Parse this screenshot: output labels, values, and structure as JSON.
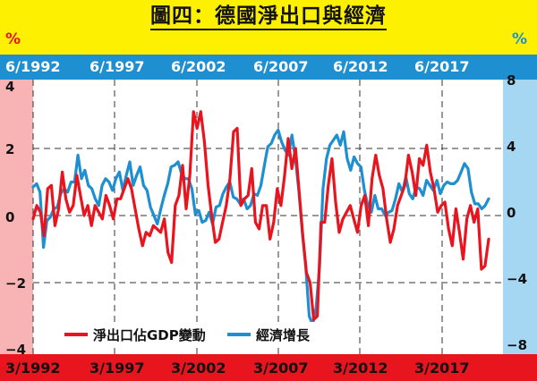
{
  "title": "圖四：德國淨出口與經濟",
  "left_unit": "%",
  "right_unit": "%",
  "colors": {
    "net_exports": "#e8141e",
    "growth": "#1e8fd0",
    "left_band": "#f8b4b4",
    "right_band": "#a6d7f2",
    "background": "#fdf000"
  },
  "chart_data": {
    "type": "line",
    "x_axis_top": {
      "ticks": [
        "6/1992",
        "6/1997",
        "6/2002",
        "6/2007",
        "6/2012",
        "6/2017"
      ]
    },
    "x_axis_bottom": {
      "ticks": [
        "3/1992",
        "3/1997",
        "3/2002",
        "3/2007",
        "3/2012",
        "3/2017"
      ]
    },
    "y_left": {
      "ylim": [
        -4,
        4
      ],
      "ticks": [
        "4",
        "2",
        "0",
        "−2",
        "−4"
      ]
    },
    "y_right": {
      "ylim": [
        -8,
        8
      ],
      "ticks": [
        "8",
        "4",
        "0",
        "−4",
        "−8"
      ]
    },
    "grid": true,
    "legend_position": "bottom-left",
    "series": [
      {
        "name": "淨出口佔GDP變動",
        "axis": "left",
        "start": "1992-03",
        "frequency": "quarterly",
        "values": [
          -0.1,
          0.3,
          0.1,
          -0.6,
          0.8,
          0.9,
          -0.3,
          0.2,
          1.3,
          0.5,
          0.1,
          0.3,
          1.2,
          0.6,
          0.0,
          0.3,
          -0.3,
          0.3,
          0.1,
          -0.1,
          0.6,
          0.3,
          -0.1,
          0.5,
          0.5,
          0.8,
          1.1,
          0.8,
          0.2,
          -0.4,
          -0.9,
          -0.5,
          -0.6,
          -0.3,
          -0.4,
          -0.5,
          -0.1,
          -1.1,
          -1.4,
          0.3,
          0.6,
          1.5,
          0.2,
          1.2,
          3.1,
          2.6,
          3.1,
          2.2,
          0.9,
          0.0,
          -0.8,
          -0.7,
          -0.2,
          0.3,
          1.1,
          2.5,
          2.6,
          0.3,
          0.5,
          0.6,
          1.4,
          -0.2,
          -0.4,
          0.3,
          0.3,
          -0.7,
          -0.2,
          0.8,
          0.3,
          1.2,
          2.3,
          1.4,
          2.0,
          0.7,
          -0.6,
          -1.7,
          -2.0,
          -3.1,
          -3.0,
          -0.2,
          -0.2,
          0.9,
          1.7,
          0.4,
          -0.5,
          -0.1,
          0.1,
          0.3,
          -0.1,
          -0.5,
          0.3,
          0.6,
          -0.3,
          1.1,
          1.8,
          1.2,
          0.8,
          -0.1,
          -0.8,
          -0.4,
          0.3,
          0.6,
          0.9,
          1.8,
          1.3,
          0.6,
          1.7,
          1.5,
          2.1,
          1.3,
          0.8,
          0.1,
          0.3,
          0.4,
          -0.4,
          -0.9,
          0.2,
          -0.5,
          -1.3,
          -0.1,
          0.3,
          -0.2,
          0.2,
          -1.6,
          -1.5,
          -0.7
        ]
      },
      {
        "name": "經濟增長",
        "axis": "right",
        "start": "1992-03",
        "frequency": "quarterly",
        "values": [
          1.7,
          1.9,
          1.4,
          -1.9,
          -0.3,
          -0.1,
          0.4,
          0.5,
          1.3,
          1.6,
          1.4,
          2.0,
          2.0,
          3.6,
          2.2,
          2.7,
          1.8,
          1.6,
          1.0,
          0.6,
          1.8,
          2.2,
          2.0,
          1.5,
          2.2,
          2.6,
          1.5,
          2.4,
          3.2,
          1.8,
          2.4,
          2.9,
          1.8,
          1.5,
          0.5,
          0.0,
          -0.5,
          0.4,
          1.2,
          1.9,
          2.9,
          3.0,
          3.2,
          2.5,
          2.2,
          2.2,
          1.6,
          0.1,
          0.3,
          -0.4,
          -0.3,
          0.2,
          -0.5,
          0.5,
          0.6,
          1.3,
          1.7,
          2.0,
          1.1,
          1.0,
          0.7,
          1.0,
          0.4,
          0.6,
          1.3,
          1.2,
          1.8,
          3.0,
          4.1,
          4.3,
          4.8,
          5.1,
          4.4,
          3.9,
          3.6,
          4.8,
          3.4,
          1.5,
          -1.0,
          -3.0,
          -6.0,
          -6.5,
          -5.5,
          -3.0,
          1.6,
          3.4,
          4.2,
          4.5,
          4.8,
          4.2,
          5.0,
          3.4,
          2.7,
          3.5,
          3.1,
          2.9,
          1.5,
          0.6,
          0.2,
          1.2,
          0.4,
          0.4,
          0.0,
          0.2,
          0.3,
          1.0,
          1.9,
          1.4,
          2.3,
          1.3,
          1.0,
          1.7,
          1.6,
          1.2,
          2.1,
          1.8,
          1.5,
          2.1,
          1.3,
          1.8,
          2.0,
          1.9,
          1.9,
          2.1,
          2.6,
          3.1,
          2.8,
          1.4,
          0.7,
          0.7,
          0.4,
          0.6,
          1.0
        ]
      }
    ]
  }
}
